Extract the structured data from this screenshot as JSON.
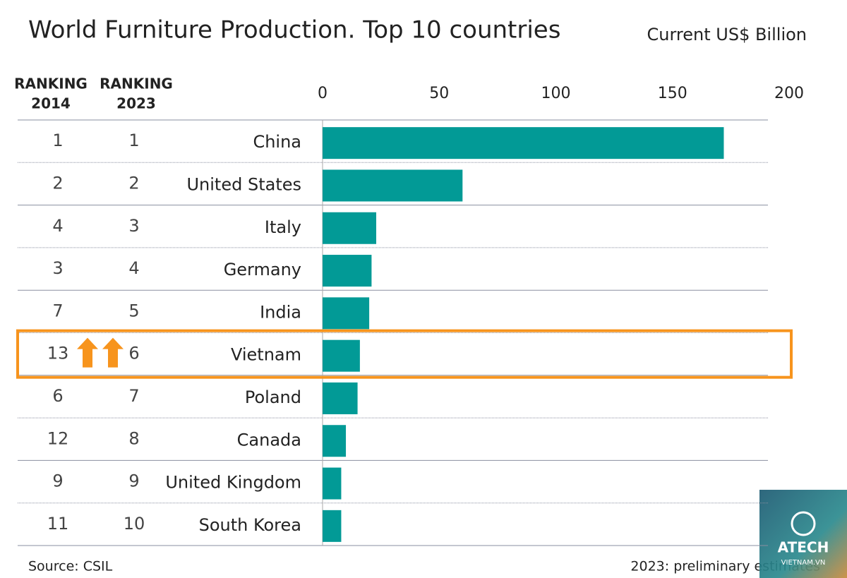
{
  "chart_data": {
    "type": "bar",
    "orientation": "horizontal",
    "title": "World Furniture Production. Top 10 countries",
    "unit_label": "Current US$ Billion",
    "rank_headers": [
      [
        "RANKING",
        "2014"
      ],
      [
        "RANKING",
        "2023"
      ]
    ],
    "rank_2014": [
      1,
      2,
      4,
      3,
      7,
      13,
      6,
      12,
      9,
      11
    ],
    "rank_2023": [
      1,
      2,
      3,
      4,
      5,
      6,
      7,
      8,
      9,
      10
    ],
    "categories": [
      "China",
      "United States",
      "Italy",
      "Germany",
      "India",
      "Vietnam",
      "Poland",
      "Canada",
      "United Kingdom",
      "South Korea"
    ],
    "values": [
      172,
      60,
      23,
      21,
      20,
      16,
      15,
      10,
      8,
      8
    ],
    "color": "#029a96",
    "xlim": [
      0,
      200
    ],
    "xticks": [
      0,
      50,
      100,
      150,
      200
    ],
    "highlight": "Vietnam",
    "highlight_color": "#f7941d",
    "source": "Source: CSIL",
    "note": "2023: preliminary estimates"
  },
  "watermark": [
    "ATECH",
    "VIETNAM.VN"
  ]
}
